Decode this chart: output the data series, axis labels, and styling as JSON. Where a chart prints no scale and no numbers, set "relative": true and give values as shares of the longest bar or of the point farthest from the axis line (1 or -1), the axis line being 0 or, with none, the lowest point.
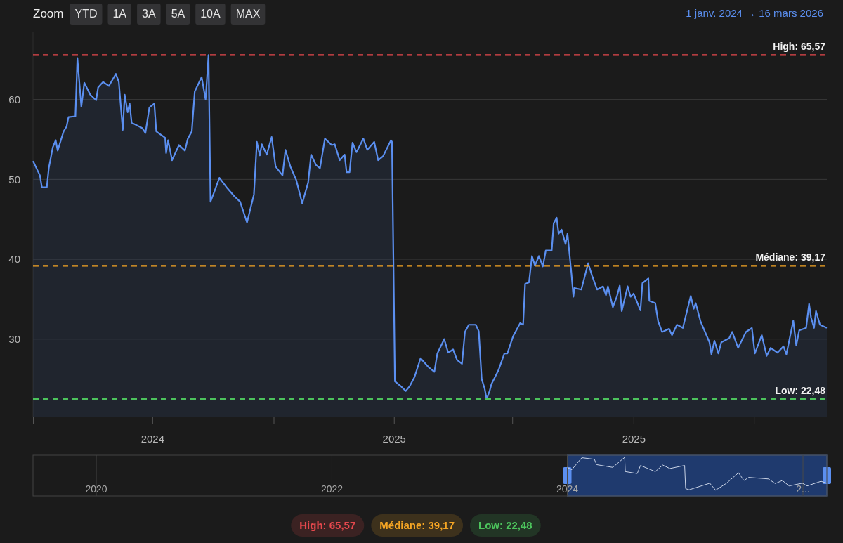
{
  "chart_data": [
    {
      "type": "area",
      "subtitle": "1 janv. 2024 → 16 mars 2026",
      "annotations": [
        "Zoom",
        "YTD",
        "1A",
        "3A",
        "5A",
        "10A",
        "MAX"
      ],
      "x": [
        "2024-01-01",
        "2024-01-08",
        "2024-01-10",
        "2024-01-15",
        "2024-01-17",
        "2024-01-21",
        "2024-01-24",
        "2024-01-26",
        "2024-02-01",
        "2024-02-04",
        "2024-02-06",
        "2024-02-13",
        "2024-02-15",
        "2024-02-19",
        "2024-02-22",
        "2024-02-28",
        "2024-03-05",
        "2024-03-07",
        "2024-03-12",
        "2024-03-18",
        "2024-03-25",
        "2024-03-28",
        "2024-04-01",
        "2024-04-03",
        "2024-04-06",
        "2024-04-08",
        "2024-04-10",
        "2024-04-21",
        "2024-04-24",
        "2024-04-28",
        "2024-05-03",
        "2024-05-05",
        "2024-05-14",
        "2024-05-15",
        "2024-05-17",
        "2024-05-21",
        "2024-05-28",
        "2024-06-03",
        "2024-06-06",
        "2024-06-10",
        "2024-06-13",
        "2024-06-20",
        "2024-06-24",
        "2024-06-27",
        "2024-06-29",
        "2024-07-03",
        "2024-07-08",
        "2024-07-16",
        "2024-07-23",
        "2024-07-29",
        "2024-08-05",
        "2024-08-12",
        "2024-08-15",
        "2024-08-18",
        "2024-08-20",
        "2024-08-25",
        "2024-08-30",
        "2024-09-03",
        "2024-09-10",
        "2024-09-13",
        "2024-09-18",
        "2024-09-24",
        "2024-09-30",
        "2024-10-06",
        "2024-10-09",
        "2024-10-14",
        "2024-10-18",
        "2024-10-23",
        "2024-10-30",
        "2024-11-02",
        "2024-11-07",
        "2024-11-12",
        "2024-11-14",
        "2024-11-17",
        "2024-11-20",
        "2024-11-24",
        "2024-12-01",
        "2024-12-05",
        "2024-12-12",
        "2024-12-16",
        "2024-12-21",
        "2024-12-29",
        "2024-12-30",
        "2025-01-02",
        "2025-01-08",
        "2025-01-13",
        "2025-01-17",
        "2025-01-22",
        "2025-01-28",
        "2025-02-05",
        "2025-02-11",
        "2025-02-14",
        "2025-02-21",
        "2025-02-25",
        "2025-03-02",
        "2025-03-06",
        "2025-03-11",
        "2025-03-14",
        "2025-03-18",
        "2025-03-25",
        "2025-03-28",
        "2025-03-31",
        "2025-04-03",
        "2025-04-05",
        "2025-04-08",
        "2025-04-10",
        "2025-04-17",
        "2025-04-23",
        "2025-04-26",
        "2025-05-02",
        "2025-05-09",
        "2025-05-12",
        "2025-05-14",
        "2025-05-18",
        "2025-05-21",
        "2025-05-24",
        "2025-05-28",
        "2025-06-01",
        "2025-06-04",
        "2025-06-10",
        "2025-06-12",
        "2025-06-15",
        "2025-06-17",
        "2025-06-20",
        "2025-06-24",
        "2025-06-26",
        "2025-06-30",
        "2025-07-02",
        "2025-07-03",
        "2025-07-10",
        "2025-07-17",
        "2025-07-21",
        "2025-07-26",
        "2025-08-01",
        "2025-08-04",
        "2025-08-06",
        "2025-08-11",
        "2025-08-15",
        "2025-08-18",
        "2025-08-20",
        "2025-08-26",
        "2025-08-29",
        "2025-09-01",
        "2025-09-08",
        "2025-09-10",
        "2025-09-16",
        "2025-09-17",
        "2025-09-23",
        "2025-09-26",
        "2025-09-30",
        "2025-10-07",
        "2025-10-10",
        "2025-10-15",
        "2025-10-21",
        "2025-10-29",
        "2025-11-01",
        "2025-11-03",
        "2025-11-08",
        "2025-11-17",
        "2025-11-19",
        "2025-11-22",
        "2025-11-26",
        "2025-11-29",
        "2025-12-07",
        "2025-12-10",
        "2025-12-16",
        "2025-12-24",
        "2025-12-30",
        "2026-01-02",
        "2026-01-09",
        "2026-01-14",
        "2026-01-18",
        "2026-01-25",
        "2026-01-31",
        "2026-02-03",
        "2026-02-10",
        "2026-02-13",
        "2026-02-16",
        "2026-02-23",
        "2026-02-26",
        "2026-02-28",
        "2026-03-03",
        "2026-03-05",
        "2026-03-09",
        "2026-03-16"
      ],
      "series": [
        {
          "color": "#5b8ff0",
          "values": [
            52.3,
            50.5,
            49.0,
            49.0,
            51.4,
            54.0,
            54.9,
            53.6,
            56.0,
            56.6,
            57.8,
            57.9,
            65.2,
            59.1,
            62.1,
            60.6,
            59.9,
            61.5,
            62.2,
            61.7,
            63.2,
            62.2,
            56.2,
            60.6,
            58.4,
            59.5,
            57.1,
            56.4,
            55.8,
            59.0,
            59.5,
            56.0,
            55.2,
            53.3,
            54.9,
            52.4,
            54.3,
            53.6,
            55.1,
            56.0,
            61.0,
            62.8,
            60.0,
            65.57,
            47.2,
            48.5,
            50.2,
            48.9,
            47.9,
            47.2,
            44.6,
            48.1,
            54.7,
            53.0,
            54.4,
            53.1,
            55.3,
            51.6,
            50.5,
            53.7,
            51.6,
            49.9,
            47.0,
            49.6,
            53.1,
            51.8,
            51.4,
            55.1,
            54.3,
            54.4,
            52.4,
            53.1,
            50.9,
            50.9,
            54.6,
            53.4,
            55.1,
            53.7,
            54.7,
            52.4,
            52.9,
            54.9,
            54.7,
            24.7,
            24.1,
            23.5,
            24.1,
            25.3,
            27.6,
            26.5,
            25.9,
            28.2,
            30.0,
            28.3,
            28.7,
            27.4,
            26.9,
            30.9,
            31.8,
            31.8,
            31.0,
            25.0,
            23.8,
            22.48,
            23.5,
            24.4,
            26.1,
            28.2,
            28.2,
            30.4,
            32.0,
            31.8,
            36.9,
            37.1,
            40.4,
            39.2,
            40.4,
            39.1,
            41.1,
            41.1,
            44.5,
            45.2,
            43.2,
            43.7,
            41.9,
            43.2,
            38.2,
            35.3,
            36.4,
            36.2,
            39.5,
            37.9,
            36.2,
            36.6,
            35.5,
            36.6,
            34.0,
            35.3,
            36.7,
            33.5,
            36.6,
            35.3,
            35.7,
            33.6,
            37.0,
            37.6,
            34.8,
            34.5,
            32.2,
            30.9,
            31.3,
            30.5,
            31.8,
            31.4,
            35.4,
            33.8,
            34.5,
            32.2,
            29.6,
            28.1,
            29.8,
            28.2,
            29.6,
            30.1,
            30.9,
            28.9,
            30.9,
            31.4,
            28.2,
            30.5,
            27.9,
            28.9,
            28.3,
            29.1,
            28.1,
            32.3,
            29.2,
            31.1,
            31.4,
            34.4,
            32.7,
            31.4,
            33.5,
            31.8,
            31.4
          ]
        }
      ],
      "xlim": [
        "2024-01-01",
        "2026-03-16"
      ],
      "xticks": [
        {
          "value": "2024-01-01",
          "label": null
        },
        {
          "value": "2024-05-01",
          "label": "2024"
        },
        {
          "value": "2024-09-01",
          "label": null
        },
        {
          "value": "2025-01-01",
          "label": "2025"
        },
        {
          "value": "2025-05-01",
          "label": null
        },
        {
          "value": "2025-09-01",
          "label": "2025"
        },
        {
          "value": "2026-01-01",
          "label": null
        }
      ],
      "ylim": [
        20.3,
        68.5
      ],
      "yticks": [
        30,
        40,
        50,
        60
      ],
      "grid": "y",
      "ref_lines": [
        {
          "axis": "y",
          "value": 65.57,
          "label": "High: 65,57",
          "color": "#e5484d",
          "line_style": "dashed"
        },
        {
          "axis": "y",
          "value": 39.17,
          "label": "Médiane: 39,17",
          "color": "#f5a524",
          "line_style": "dashed"
        },
        {
          "axis": "y",
          "value": 22.48,
          "label": "Low: 22,48",
          "color": "#4cc35c",
          "line_style": "dashed"
        }
      ]
    },
    {
      "type": "line",
      "x": [
        "2024-01-01",
        "2024-01-15",
        "2024-02-15",
        "2024-03-25",
        "2024-04-01",
        "2024-05-21",
        "2024-06-27",
        "2024-06-29",
        "2024-08-05",
        "2024-08-15",
        "2024-09-30",
        "2024-10-23",
        "2024-11-14",
        "2024-12-30",
        "2025-01-02",
        "2025-01-13",
        "2025-03-18",
        "2025-03-31",
        "2025-04-05",
        "2025-05-09",
        "2025-06-15",
        "2025-07-02",
        "2025-07-17",
        "2025-09-16",
        "2025-10-07",
        "2025-10-29",
        "2025-11-19",
        "2025-12-30",
        "2026-01-14",
        "2026-02-26",
        "2026-03-16"
      ],
      "series": [
        {
          "color": "#c9d3e6",
          "values": [
            0.74,
            0.68,
            0.99,
            0.95,
            0.81,
            0.74,
            1,
            0.63,
            0.58,
            0.79,
            0.63,
            0.8,
            0.71,
            0.79,
            0.19,
            0.16,
            0.33,
            0.2,
            0.15,
            0.33,
            0.6,
            0.4,
            0.48,
            0.44,
            0.32,
            0.4,
            0.26,
            0.33,
            0.26,
            0.38,
            0.33
          ]
        }
      ],
      "xlim": [
        "2019-06-19",
        "2026-03-16"
      ],
      "xticks": [
        {
          "value": "2020-01-01",
          "label": "2020"
        },
        {
          "value": "2022-01-01",
          "label": "2022"
        },
        {
          "value": "2024-01-01",
          "label": "2024"
        },
        {
          "value": "2026-01-01",
          "label": "2..."
        }
      ],
      "relative": true,
      "grid": "x",
      "tick_labels": "x",
      "bands": [
        {
          "axis": "x",
          "from": "2024-01-01",
          "to": "2026-03-16",
          "color": "#1f3a6e"
        }
      ]
    }
  ]
}
